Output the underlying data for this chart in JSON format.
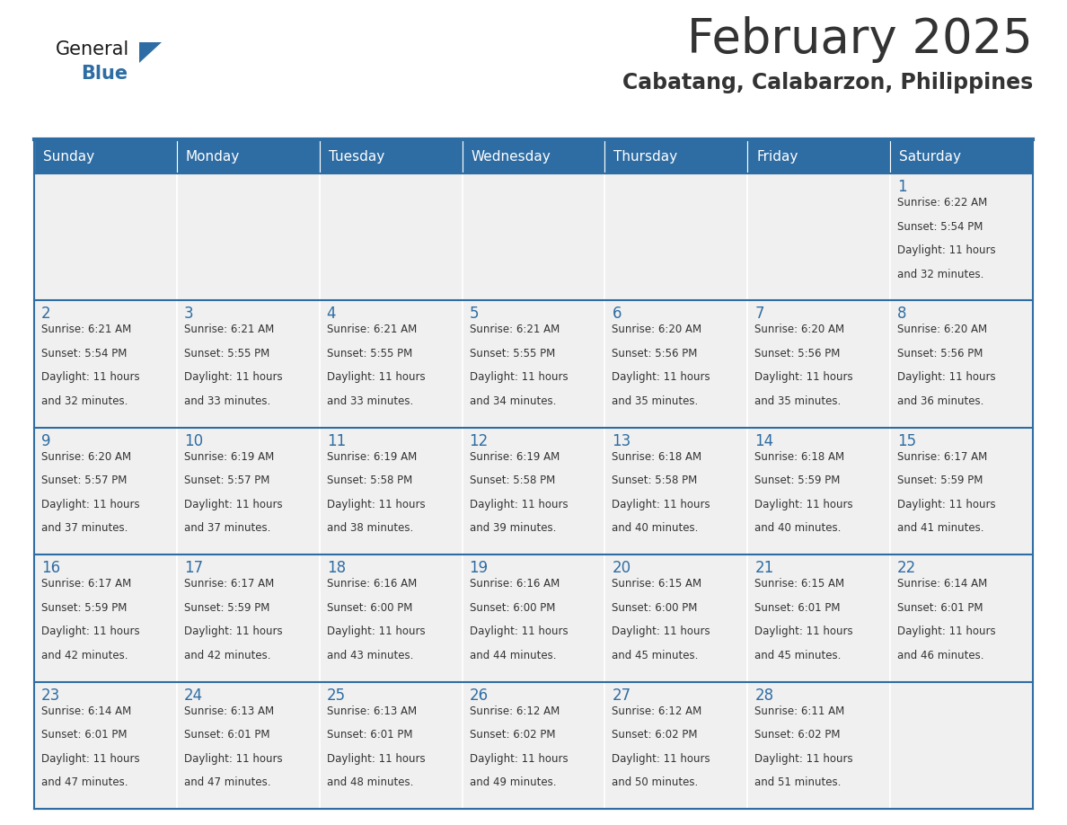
{
  "title": "February 2025",
  "subtitle": "Cabatang, Calabarzon, Philippines",
  "header_color": "#2E6DA4",
  "header_text_color": "#FFFFFF",
  "cell_bg_color": "#F0F0F0",
  "border_color": "#2E6DA4",
  "cell_border_color": "#CCCCCC",
  "text_color": "#333333",
  "day_number_color": "#2E6DA4",
  "days_of_week": [
    "Sunday",
    "Monday",
    "Tuesday",
    "Wednesday",
    "Thursday",
    "Friday",
    "Saturday"
  ],
  "calendar_data": [
    [
      {
        "day": "",
        "sunrise": "",
        "sunset": "",
        "daylight": ""
      },
      {
        "day": "",
        "sunrise": "",
        "sunset": "",
        "daylight": ""
      },
      {
        "day": "",
        "sunrise": "",
        "sunset": "",
        "daylight": ""
      },
      {
        "day": "",
        "sunrise": "",
        "sunset": "",
        "daylight": ""
      },
      {
        "day": "",
        "sunrise": "",
        "sunset": "",
        "daylight": ""
      },
      {
        "day": "",
        "sunrise": "",
        "sunset": "",
        "daylight": ""
      },
      {
        "day": "1",
        "sunrise": "6:22 AM",
        "sunset": "5:54 PM",
        "daylight": "11 hours and 32 minutes."
      }
    ],
    [
      {
        "day": "2",
        "sunrise": "6:21 AM",
        "sunset": "5:54 PM",
        "daylight": "11 hours and 32 minutes."
      },
      {
        "day": "3",
        "sunrise": "6:21 AM",
        "sunset": "5:55 PM",
        "daylight": "11 hours and 33 minutes."
      },
      {
        "day": "4",
        "sunrise": "6:21 AM",
        "sunset": "5:55 PM",
        "daylight": "11 hours and 33 minutes."
      },
      {
        "day": "5",
        "sunrise": "6:21 AM",
        "sunset": "5:55 PM",
        "daylight": "11 hours and 34 minutes."
      },
      {
        "day": "6",
        "sunrise": "6:20 AM",
        "sunset": "5:56 PM",
        "daylight": "11 hours and 35 minutes."
      },
      {
        "day": "7",
        "sunrise": "6:20 AM",
        "sunset": "5:56 PM",
        "daylight": "11 hours and 35 minutes."
      },
      {
        "day": "8",
        "sunrise": "6:20 AM",
        "sunset": "5:56 PM",
        "daylight": "11 hours and 36 minutes."
      }
    ],
    [
      {
        "day": "9",
        "sunrise": "6:20 AM",
        "sunset": "5:57 PM",
        "daylight": "11 hours and 37 minutes."
      },
      {
        "day": "10",
        "sunrise": "6:19 AM",
        "sunset": "5:57 PM",
        "daylight": "11 hours and 37 minutes."
      },
      {
        "day": "11",
        "sunrise": "6:19 AM",
        "sunset": "5:58 PM",
        "daylight": "11 hours and 38 minutes."
      },
      {
        "day": "12",
        "sunrise": "6:19 AM",
        "sunset": "5:58 PM",
        "daylight": "11 hours and 39 minutes."
      },
      {
        "day": "13",
        "sunrise": "6:18 AM",
        "sunset": "5:58 PM",
        "daylight": "11 hours and 40 minutes."
      },
      {
        "day": "14",
        "sunrise": "6:18 AM",
        "sunset": "5:59 PM",
        "daylight": "11 hours and 40 minutes."
      },
      {
        "day": "15",
        "sunrise": "6:17 AM",
        "sunset": "5:59 PM",
        "daylight": "11 hours and 41 minutes."
      }
    ],
    [
      {
        "day": "16",
        "sunrise": "6:17 AM",
        "sunset": "5:59 PM",
        "daylight": "11 hours and 42 minutes."
      },
      {
        "day": "17",
        "sunrise": "6:17 AM",
        "sunset": "5:59 PM",
        "daylight": "11 hours and 42 minutes."
      },
      {
        "day": "18",
        "sunrise": "6:16 AM",
        "sunset": "6:00 PM",
        "daylight": "11 hours and 43 minutes."
      },
      {
        "day": "19",
        "sunrise": "6:16 AM",
        "sunset": "6:00 PM",
        "daylight": "11 hours and 44 minutes."
      },
      {
        "day": "20",
        "sunrise": "6:15 AM",
        "sunset": "6:00 PM",
        "daylight": "11 hours and 45 minutes."
      },
      {
        "day": "21",
        "sunrise": "6:15 AM",
        "sunset": "6:01 PM",
        "daylight": "11 hours and 45 minutes."
      },
      {
        "day": "22",
        "sunrise": "6:14 AM",
        "sunset": "6:01 PM",
        "daylight": "11 hours and 46 minutes."
      }
    ],
    [
      {
        "day": "23",
        "sunrise": "6:14 AM",
        "sunset": "6:01 PM",
        "daylight": "11 hours and 47 minutes."
      },
      {
        "day": "24",
        "sunrise": "6:13 AM",
        "sunset": "6:01 PM",
        "daylight": "11 hours and 47 minutes."
      },
      {
        "day": "25",
        "sunrise": "6:13 AM",
        "sunset": "6:01 PM",
        "daylight": "11 hours and 48 minutes."
      },
      {
        "day": "26",
        "sunrise": "6:12 AM",
        "sunset": "6:02 PM",
        "daylight": "11 hours and 49 minutes."
      },
      {
        "day": "27",
        "sunrise": "6:12 AM",
        "sunset": "6:02 PM",
        "daylight": "11 hours and 50 minutes."
      },
      {
        "day": "28",
        "sunrise": "6:11 AM",
        "sunset": "6:02 PM",
        "daylight": "11 hours and 51 minutes."
      },
      {
        "day": "",
        "sunrise": "",
        "sunset": "",
        "daylight": ""
      }
    ]
  ],
  "logo_color_general": "#1a1a1a",
  "logo_color_blue": "#2E6DA4",
  "logo_triangle_color": "#2E6DA4",
  "fig_width": 11.88,
  "fig_height": 9.18,
  "dpi": 100
}
